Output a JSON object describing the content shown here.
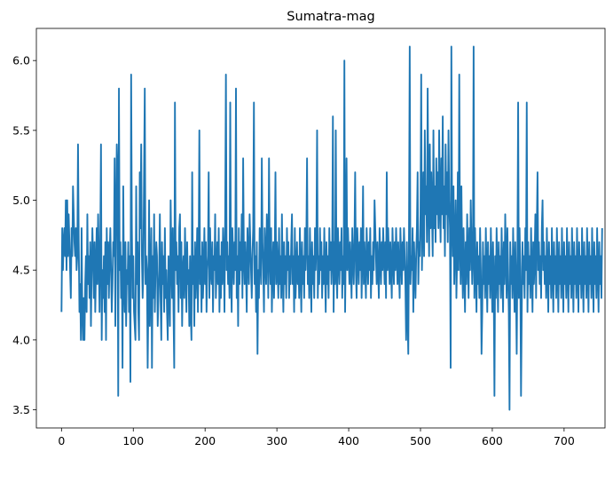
{
  "chart_data": {
    "type": "line",
    "title": "Sumatra-mag",
    "xlabel": "",
    "ylabel": "",
    "xlim": [
      -35,
      757
    ],
    "ylim": [
      3.37,
      6.23
    ],
    "x_ticks": [
      0,
      100,
      200,
      300,
      400,
      500,
      600,
      700
    ],
    "y_ticks": [
      3.5,
      4.0,
      4.5,
      5.0,
      5.5,
      6.0
    ],
    "y_tick_labels": [
      "3.5",
      "4.0",
      "4.5",
      "5.0",
      "5.5",
      "6.0"
    ],
    "grid": false,
    "line_color": "#1f77b4",
    "series": [
      {
        "x_start": 0,
        "x_step": 1,
        "values": [
          4.2,
          4.8,
          4.5,
          4.7,
          4.8,
          4.6,
          5.0,
          4.5,
          5.0,
          4.6,
          4.9,
          4.7,
          4.5,
          4.3,
          4.8,
          4.6,
          5.1,
          4.9,
          4.7,
          4.6,
          4.8,
          4.5,
          4.6,
          5.4,
          4.7,
          4.2,
          4.4,
          4.0,
          4.8,
          4.2,
          4.0,
          4.3,
          4.0,
          4.4,
          4.6,
          4.2,
          4.9,
          4.4,
          4.6,
          4.3,
          4.7,
          4.1,
          4.5,
          4.8,
          4.6,
          4.3,
          4.7,
          4.2,
          4.5,
          4.8,
          4.4,
          4.9,
          4.6,
          4.2,
          4.7,
          5.4,
          4.0,
          4.5,
          4.3,
          4.6,
          4.2,
          4.7,
          4.0,
          4.8,
          4.4,
          4.7,
          4.3,
          4.6,
          4.8,
          4.5,
          4.2,
          4.4,
          4.7,
          4.6,
          5.3,
          4.1,
          4.8,
          5.4,
          5.2,
          3.6,
          5.8,
          4.5,
          4.7,
          4.3,
          4.6,
          3.8,
          5.1,
          4.4,
          4.2,
          4.7,
          4.1,
          4.5,
          4.4,
          4.7,
          4.2,
          4.6,
          3.7,
          5.9,
          4.8,
          4.3,
          4.6,
          4.2,
          4.1,
          4.0,
          5.1,
          4.4,
          4.7,
          4.2,
          4.0,
          5.2,
          4.8,
          5.4,
          4.6,
          4.3,
          4.5,
          5.2,
          5.8,
          4.4,
          4.6,
          4.5,
          3.8,
          4.3,
          5.0,
          4.1,
          4.4,
          4.8,
          3.8,
          4.6,
          4.3,
          4.9,
          4.2,
          4.5,
          4.7,
          4.6,
          4.1,
          4.3,
          4.5,
          4.9,
          4.3,
          4.0,
          4.7,
          4.4,
          4.6,
          4.2,
          4.8,
          4.3,
          4.5,
          4.2,
          4.0,
          4.6,
          4.4,
          4.1,
          5.0,
          4.6,
          4.3,
          4.8,
          4.2,
          3.8,
          5.7,
          4.5,
          4.7,
          4.4,
          4.6,
          4.2,
          4.8,
          4.9,
          4.3,
          4.7,
          4.1,
          4.5,
          4.6,
          4.3,
          4.8,
          4.5,
          4.2,
          4.7,
          4.4,
          4.5,
          4.1,
          4.6,
          4.2,
          4.0,
          5.2,
          4.4,
          4.6,
          4.1,
          4.7,
          4.3,
          4.5,
          4.8,
          4.2,
          4.6,
          5.5,
          4.4,
          4.6,
          4.2,
          4.7,
          4.3,
          4.5,
          4.8,
          4.4,
          4.7,
          4.2,
          4.5,
          4.6,
          5.2,
          4.3,
          4.8,
          4.5,
          4.4,
          4.7,
          4.2,
          4.6,
          4.5,
          4.9,
          4.3,
          4.5,
          4.7,
          4.4,
          4.8,
          4.2,
          4.6,
          4.3,
          4.7,
          4.4,
          4.8,
          4.6,
          4.2,
          4.9,
          5.9,
          4.5,
          4.7,
          4.4,
          4.6,
          4.3,
          5.7,
          4.5,
          4.2,
          4.8,
          4.6,
          4.4,
          4.7,
          4.5,
          5.8,
          4.3,
          4.6,
          4.1,
          4.8,
          4.4,
          4.7,
          4.5,
          4.9,
          4.3,
          5.3,
          4.6,
          4.4,
          4.7,
          4.5,
          4.2,
          4.8,
          4.6,
          4.4,
          4.9,
          4.7,
          4.5,
          4.3,
          4.6,
          4.8,
          5.7,
          4.4,
          4.6,
          4.2,
          4.7,
          3.9,
          4.5,
          4.3,
          4.8,
          4.6,
          4.4,
          5.3,
          4.7,
          4.5,
          4.2,
          4.8,
          4.6,
          4.4,
          4.9,
          4.7,
          4.3,
          5.3,
          4.6,
          4.4,
          4.8,
          4.2,
          4.5,
          4.7,
          4.3,
          4.6,
          5.2,
          4.4,
          4.7,
          4.5,
          4.3,
          4.8,
          4.4,
          4.6,
          4.3,
          4.9,
          4.5,
          4.2,
          4.7,
          4.4,
          4.6,
          4.3,
          4.8,
          4.5,
          4.7,
          4.3,
          4.6,
          4.4,
          4.7,
          4.9,
          4.4,
          4.6,
          4.2,
          4.8,
          4.3,
          4.5,
          4.7,
          4.4,
          4.6,
          4.3,
          4.8,
          4.5,
          4.2,
          4.7,
          4.4,
          4.6,
          4.3,
          4.8,
          4.5,
          4.7,
          5.3,
          4.4,
          4.6,
          4.3,
          4.8,
          4.5,
          4.2,
          4.7,
          4.4,
          4.6,
          4.3,
          4.8,
          4.5,
          4.7,
          5.5,
          4.3,
          4.6,
          4.4,
          4.8,
          4.5,
          4.7,
          4.3,
          4.6,
          4.4,
          4.8,
          4.5,
          4.2,
          4.7,
          4.4,
          4.6,
          4.3,
          4.8,
          4.5,
          4.7,
          4.4,
          4.6,
          5.6,
          4.2,
          4.7,
          4.4,
          5.5,
          4.5,
          4.3,
          4.8,
          4.6,
          4.4,
          4.7,
          4.5,
          4.8,
          4.3,
          4.6,
          4.4,
          6.0,
          4.2,
          4.7,
          5.3,
          4.5,
          4.8,
          4.6,
          4.4,
          4.7,
          4.5,
          4.3,
          4.8,
          4.6,
          4.4,
          4.7,
          5.2,
          4.5,
          4.3,
          4.8,
          4.6,
          4.4,
          4.7,
          4.5,
          4.8,
          4.3,
          4.6,
          5.1,
          4.4,
          4.7,
          4.5,
          4.3,
          4.8,
          4.6,
          4.4,
          4.7,
          4.5,
          4.8,
          4.3,
          4.6,
          4.4,
          4.7,
          4.5,
          5.0,
          4.8,
          4.6,
          4.4,
          4.7,
          4.5,
          4.3,
          4.8,
          4.6,
          4.4,
          4.7,
          4.5,
          4.8,
          4.6,
          4.4,
          4.7,
          4.3,
          5.2,
          4.5,
          4.8,
          4.6,
          4.4,
          4.7,
          4.5,
          4.3,
          4.8,
          4.6,
          4.4,
          4.7,
          4.5,
          4.8,
          4.6,
          4.4,
          4.7,
          4.5,
          4.3,
          4.8,
          4.6,
          4.4,
          4.7,
          4.5,
          4.8,
          4.6,
          4.4,
          4.0,
          4.7,
          4.2,
          3.9,
          4.8,
          6.1,
          4.4,
          4.6,
          4.5,
          4.8,
          4.2,
          4.7,
          4.5,
          4.3,
          4.6,
          4.8,
          5.2,
          4.4,
          4.7,
          4.6,
          4.9,
          5.9,
          4.5,
          4.8,
          5.2,
          4.6,
          5.5,
          4.9,
          5.1,
          4.7,
          5.8,
          5.0,
          4.6,
          5.4,
          4.8,
          5.2,
          4.9,
          4.6,
          5.5,
          4.8,
          5.1,
          4.7,
          5.3,
          4.9,
          5.2,
          4.8,
          5.5,
          5.0,
          4.7,
          5.3,
          4.9,
          5.6,
          4.8,
          5.1,
          4.6,
          5.4,
          4.9,
          5.2,
          4.7,
          5.5,
          5.0,
          4.8,
          3.8,
          6.1,
          4.9,
          4.6,
          5.1,
          4.4,
          4.7,
          5.0,
          4.3,
          4.6,
          5.2,
          4.5,
          5.9,
          4.7,
          4.4,
          5.1,
          4.6,
          4.3,
          4.8,
          4.5,
          4.2,
          4.7,
          4.4,
          4.9,
          4.6,
          4.3,
          4.8,
          4.5,
          5.0,
          4.7,
          4.4,
          4.6,
          6.1,
          4.3,
          4.8,
          4.5,
          4.2,
          4.7,
          4.4,
          4.6,
          4.3,
          4.8,
          4.5,
          3.9,
          4.2,
          4.7,
          4.4,
          4.6,
          4.3,
          4.8,
          4.5,
          4.2,
          4.7,
          4.4,
          4.6,
          4.3,
          4.8,
          4.5,
          4.2,
          4.7,
          4.4,
          3.6,
          4.6,
          4.3,
          4.8,
          4.5,
          4.2,
          4.7,
          4.4,
          4.6,
          4.3,
          4.8,
          4.5,
          4.2,
          4.7,
          4.4,
          4.9,
          4.6,
          4.3,
          4.8,
          4.5,
          4.2,
          3.5,
          4.7,
          4.4,
          4.6,
          4.3,
          4.8,
          4.5,
          4.2,
          4.7,
          4.4,
          3.9,
          4.6,
          5.7,
          4.3,
          4.8,
          4.5,
          3.6,
          4.2,
          4.7,
          4.4,
          4.6,
          4.3,
          4.8,
          4.5,
          5.7,
          4.2,
          4.7,
          4.4,
          4.6,
          4.3,
          4.8,
          4.5,
          4.2,
          4.7,
          4.4,
          4.6,
          4.9,
          4.3,
          4.8,
          5.2,
          4.5,
          4.7,
          4.4,
          4.6,
          4.3,
          4.8,
          5.0,
          4.5,
          4.7,
          4.4,
          4.6,
          4.3,
          4.8,
          4.5,
          4.2,
          4.7,
          4.4,
          4.6,
          4.3,
          4.8,
          4.5,
          4.2,
          4.7,
          4.4,
          4.6,
          4.3,
          4.8,
          4.5,
          4.2,
          4.7,
          4.4,
          4.6,
          4.3,
          4.8,
          4.5,
          4.2,
          4.7,
          4.4,
          4.6,
          4.3,
          4.8,
          4.5,
          4.2,
          4.7,
          4.4,
          4.6,
          4.3,
          4.8,
          4.5,
          4.2,
          4.7,
          4.4,
          4.6,
          4.3,
          4.8,
          4.5,
          4.2,
          4.7,
          4.4,
          4.6,
          4.3,
          4.8,
          4.5,
          4.2,
          4.7,
          4.4,
          4.6,
          4.3,
          4.8,
          4.5,
          4.2,
          4.7,
          4.4,
          4.6,
          4.3,
          4.8,
          4.5,
          4.2,
          4.7,
          4.4,
          4.6,
          4.3,
          4.8,
          4.5,
          4.2,
          4.7,
          4.4,
          4.6,
          4.3,
          4.8
        ]
      }
    ]
  }
}
